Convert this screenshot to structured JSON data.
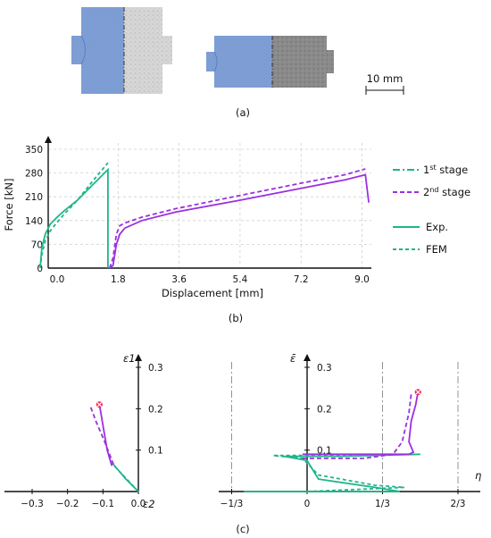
{
  "panel_a": {
    "caption": "(a)",
    "scale_bar_label": "10 mm",
    "specimen_colors": {
      "fe_mesh": "#7f9fd6",
      "photo_left": "#cdcdcd",
      "photo_right": "#8a8a8a"
    }
  },
  "panel_b": {
    "caption": "(b)"
  },
  "panel_c": {
    "caption": "(c)"
  },
  "legend": {
    "stage1": "1",
    "stage1_sup": "st",
    "stage1_tail": " stage",
    "stage2": "2",
    "stage2_sup": "nd",
    "stage2_tail": " stage",
    "exp": "Exp.",
    "fem": "FEM"
  },
  "colors": {
    "stage1": "#1fb58a",
    "stage2": "#9b30e0",
    "marker": "#ee2f62",
    "grid": "#d0d0d0"
  },
  "chart_data": [
    {
      "type": "line",
      "xlabel": "Displacement [mm]",
      "ylabel": "Force [kN]",
      "x_ticks": [
        "0.0",
        "1.8",
        "3.6",
        "5.4",
        "7.2",
        "9.0"
      ],
      "y_ticks": [
        "0",
        "70",
        "140",
        "210",
        "280",
        "350"
      ],
      "xlim": [
        -0.5,
        9.3
      ],
      "ylim": [
        0,
        350
      ],
      "grid": true,
      "legend": "right",
      "series": [
        {
          "stage": "1st",
          "kind": "Exp.",
          "points": [
            [
              -0.5,
              0
            ],
            [
              -0.45,
              60
            ],
            [
              -0.35,
              100
            ],
            [
              -0.2,
              130
            ],
            [
              0.0,
              150
            ],
            [
              0.2,
              168
            ],
            [
              0.6,
              200
            ],
            [
              1.0,
              240
            ],
            [
              1.5,
              290
            ],
            [
              1.5,
              0
            ]
          ]
        },
        {
          "stage": "1st",
          "kind": "FEM",
          "points": [
            [
              -0.5,
              0
            ],
            [
              -0.45,
              40
            ],
            [
              -0.35,
              80
            ],
            [
              -0.2,
              110
            ],
            [
              0.0,
              135
            ],
            [
              0.2,
              158
            ],
            [
              0.6,
              200
            ],
            [
              1.0,
              250
            ],
            [
              1.5,
              310
            ]
          ]
        },
        {
          "stage": "2nd",
          "kind": "Exp.",
          "points": [
            [
              1.55,
              0
            ],
            [
              1.65,
              8
            ],
            [
              1.75,
              70
            ],
            [
              1.85,
              100
            ],
            [
              2.0,
              118
            ],
            [
              2.5,
              140
            ],
            [
              3.5,
              165
            ],
            [
              5.4,
              200
            ],
            [
              7.2,
              235
            ],
            [
              8.5,
              260
            ],
            [
              9.1,
              275
            ],
            [
              9.2,
              193
            ]
          ]
        },
        {
          "stage": "2nd",
          "kind": "FEM",
          "points": [
            [
              1.55,
              0
            ],
            [
              1.65,
              30
            ],
            [
              1.75,
              100
            ],
            [
              1.85,
              125
            ],
            [
              2.0,
              133
            ],
            [
              2.5,
              150
            ],
            [
              3.5,
              175
            ],
            [
              5.4,
              214
            ],
            [
              7.2,
              250
            ],
            [
              8.5,
              275
            ],
            [
              9.1,
              292
            ]
          ]
        }
      ]
    },
    {
      "type": "line",
      "xlabel": "ε2",
      "ylabel": "ε1",
      "x_ticks": [
        "−0.3",
        "−0.2",
        "−0.1",
        "0.0"
      ],
      "y_ticks": [
        "0.1",
        "0.2",
        "0.3"
      ],
      "xlim": [
        -0.35,
        0.0
      ],
      "ylim": [
        0,
        0.32
      ],
      "grid": false,
      "series": [
        {
          "stage": "1st",
          "kind": "Exp.",
          "points": [
            [
              0.0,
              0.0
            ],
            [
              -0.035,
              0.03
            ],
            [
              -0.07,
              0.065
            ]
          ]
        },
        {
          "stage": "1st",
          "kind": "FEM",
          "points": [
            [
              0.0,
              0.0
            ],
            [
              -0.035,
              0.032
            ],
            [
              -0.075,
              0.068
            ]
          ]
        },
        {
          "stage": "2nd",
          "kind": "Exp.",
          "points": [
            [
              -0.075,
              0.062
            ],
            [
              -0.088,
              0.1
            ],
            [
              -0.098,
              0.15
            ],
            [
              -0.108,
              0.2
            ],
            [
              -0.11,
              0.21
            ]
          ]
        },
        {
          "stage": "2nd",
          "kind": "FEM",
          "points": [
            [
              -0.07,
              0.065
            ],
            [
              -0.095,
              0.12
            ],
            [
              -0.12,
              0.17
            ],
            [
              -0.135,
              0.205
            ]
          ]
        }
      ],
      "failure_marker": [
        -0.11,
        0.21
      ]
    },
    {
      "type": "line",
      "xlabel": "η",
      "ylabel": "ε̄",
      "x_ticks": [
        "−1/3",
        "0",
        "1/3",
        "2/3"
      ],
      "y_ticks": [
        "0.1",
        "0.2",
        "0.3"
      ],
      "xlim": [
        -0.42,
        0.78
      ],
      "ylim": [
        0,
        0.32
      ],
      "grid": false,
      "series": [
        {
          "stage": "1st",
          "kind": "Exp.",
          "points": [
            [
              -0.28,
              0.0
            ],
            [
              0.41,
              0.0
            ],
            [
              0.3,
              0.01
            ],
            [
              0.05,
              0.03
            ],
            [
              0.0,
              0.075
            ],
            [
              -0.1,
              0.085
            ],
            [
              0.15,
              0.085
            ],
            [
              0.5,
              0.09
            ]
          ]
        },
        {
          "stage": "1st",
          "kind": "FEM",
          "points": [
            [
              0.0,
              0.0
            ],
            [
              0.43,
              0.01
            ],
            [
              0.3,
              0.015
            ],
            [
              0.05,
              0.04
            ],
            [
              -0.02,
              0.08
            ],
            [
              -0.15,
              0.087
            ],
            [
              0.2,
              0.087
            ]
          ]
        },
        {
          "stage": "2nd",
          "kind": "Exp.",
          "points": [
            [
              -0.02,
              0.09
            ],
            [
              0.3,
              0.09
            ],
            [
              0.45,
              0.09
            ],
            [
              0.47,
              0.095
            ],
            [
              0.45,
              0.12
            ],
            [
              0.46,
              0.17
            ],
            [
              0.48,
              0.21
            ],
            [
              0.49,
              0.24
            ]
          ]
        },
        {
          "stage": "2nd",
          "kind": "FEM",
          "points": [
            [
              -0.02,
              0.08
            ],
            [
              0.25,
              0.08
            ],
            [
              0.38,
              0.09
            ],
            [
              0.42,
              0.12
            ],
            [
              0.45,
              0.19
            ],
            [
              0.46,
              0.235
            ]
          ]
        }
      ],
      "failure_marker": [
        0.49,
        0.24
      ]
    }
  ]
}
